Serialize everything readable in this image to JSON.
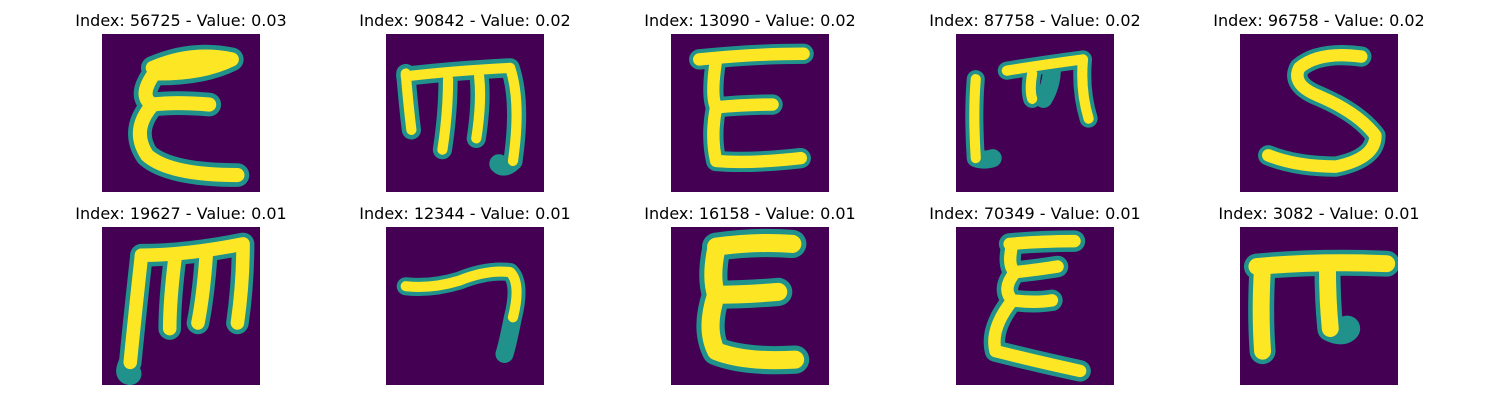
{
  "colors": {
    "background": "#440154",
    "stroke_outer": "#21918c",
    "stroke_mid": "#5ec962",
    "stroke_inner": "#fde725"
  },
  "panels": [
    {
      "index": "56725",
      "value": "0.03",
      "title": "Index: 56725 - Value: 0.03",
      "glyph": "E-shape"
    },
    {
      "index": "90842",
      "value": "0.02",
      "title": "Index: 90842 - Value: 0.02",
      "glyph": "m-shape"
    },
    {
      "index": "13090",
      "value": "0.02",
      "title": "Index: 13090 - Value: 0.02",
      "glyph": "E-shape"
    },
    {
      "index": "87758",
      "value": "0.02",
      "title": "Index: 87758 - Value: 0.02",
      "glyph": "m-shape"
    },
    {
      "index": "96758",
      "value": "0.02",
      "title": "Index: 96758 - Value: 0.02",
      "glyph": "S-shape"
    },
    {
      "index": "19627",
      "value": "0.01",
      "title": "Index: 19627 - Value: 0.01",
      "glyph": "m-shape"
    },
    {
      "index": "12344",
      "value": "0.01",
      "title": "Index: 12344 - Value: 0.01",
      "glyph": "hook-shape"
    },
    {
      "index": "16158",
      "value": "0.01",
      "title": "Index: 16158 - Value: 0.01",
      "glyph": "E-shape"
    },
    {
      "index": "70349",
      "value": "0.01",
      "title": "Index: 70349 - Value: 0.01",
      "glyph": "E-shape"
    },
    {
      "index": "3082",
      "value": "0.01",
      "title": "Index: 3082 - Value: 0.01",
      "glyph": "pi-shape"
    }
  ]
}
